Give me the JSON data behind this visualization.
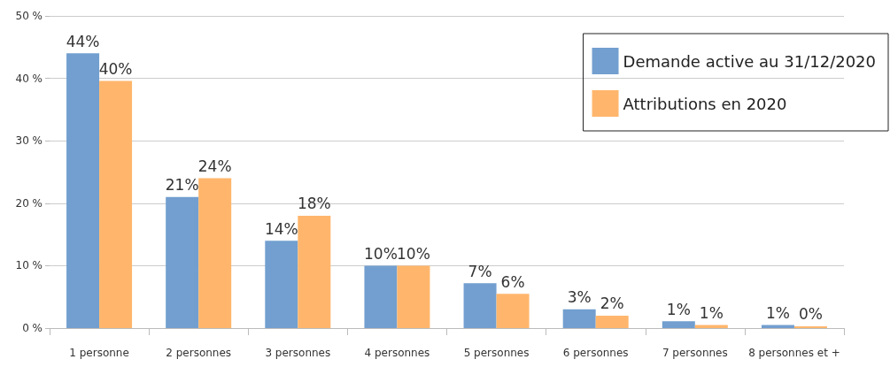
{
  "chart_data": {
    "type": "bar",
    "categories": [
      "1 personne",
      "2 personnes",
      "3 personnes",
      "4 personnes",
      "5 personnes",
      "6 personnes",
      "7 personnes",
      "8 personnes et +"
    ],
    "series": [
      {
        "name": "Demande active au 31/12/2020",
        "color": "#729fcf",
        "values": [
          44,
          21,
          14,
          10,
          7.2,
          3,
          1.1,
          0.5
        ],
        "value_labels": [
          "44%",
          "21%",
          "14%",
          "10%",
          "7%",
          "3%",
          "1%",
          "1%"
        ]
      },
      {
        "name": "Attributions en 2020",
        "color": "#ffb66c",
        "values": [
          39.6,
          24,
          18,
          10,
          5.5,
          2,
          0.5,
          0.3
        ],
        "value_labels": [
          "40%",
          "24%",
          "18%",
          "10%",
          "6%",
          "2%",
          "1%",
          "0%"
        ]
      }
    ],
    "ylim": [
      0,
      50
    ],
    "yticks": [
      {
        "value": 0,
        "label": "0 %"
      },
      {
        "value": 10,
        "label": "10 %"
      },
      {
        "value": 20,
        "label": "20 %"
      },
      {
        "value": 30,
        "label": "30 %"
      },
      {
        "value": 40,
        "label": "40 %"
      },
      {
        "value": 50,
        "label": "50 %"
      }
    ],
    "grid": "y",
    "legend": "top right"
  }
}
